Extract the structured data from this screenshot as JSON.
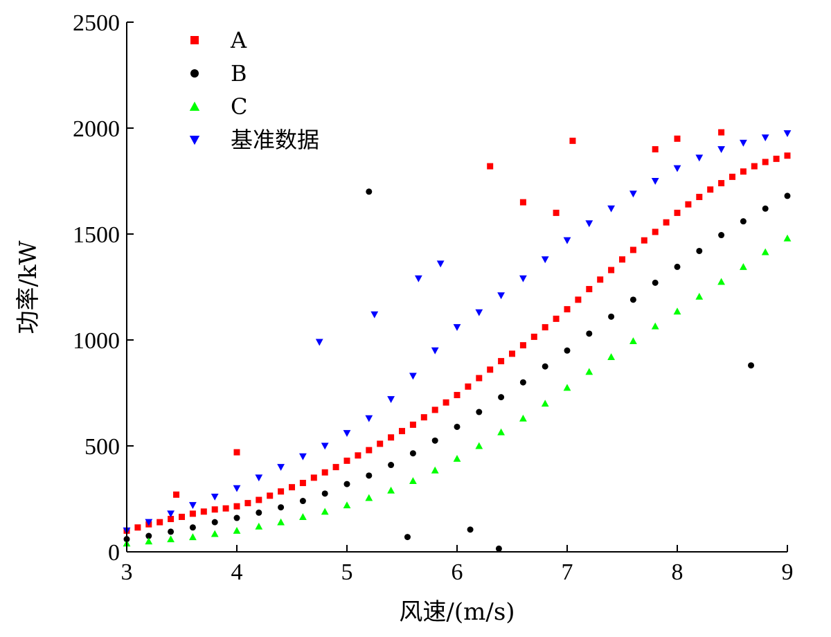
{
  "chart_data": {
    "type": "scatter",
    "xlabel": "风速/(m/s)",
    "ylabel": "功率/kW",
    "xlim": [
      3,
      9
    ],
    "ylim": [
      0,
      2500
    ],
    "xticks": [
      3,
      4,
      5,
      6,
      7,
      8,
      9
    ],
    "yticks": [
      0,
      500,
      1000,
      1500,
      2000,
      2500
    ],
    "grid": false,
    "legend_position": "top-left",
    "series": [
      {
        "name": "A",
        "marker": "square",
        "color": "#ff0000",
        "x": [
          3.0,
          3.1,
          3.2,
          3.3,
          3.4,
          3.5,
          3.6,
          3.7,
          3.8,
          3.9,
          4.0,
          4.1,
          4.2,
          4.3,
          4.4,
          4.5,
          4.6,
          4.7,
          4.8,
          4.9,
          5.0,
          5.1,
          5.2,
          5.3,
          5.4,
          5.5,
          5.6,
          5.7,
          5.8,
          5.9,
          6.0,
          6.1,
          6.2,
          6.3,
          6.4,
          6.5,
          6.6,
          6.7,
          6.8,
          6.9,
          7.0,
          7.1,
          7.2,
          7.3,
          7.4,
          7.5,
          7.6,
          7.7,
          7.8,
          7.9,
          8.0,
          8.1,
          8.2,
          8.3,
          8.4,
          8.5,
          8.6,
          8.7,
          8.8,
          8.9,
          9.0,
          6.3,
          6.6,
          7.05,
          6.9,
          8.0,
          8.4,
          7.8,
          4.0,
          3.45
        ],
        "y": [
          100,
          115,
          130,
          140,
          155,
          165,
          180,
          190,
          200,
          205,
          215,
          230,
          245,
          265,
          285,
          305,
          325,
          350,
          375,
          400,
          430,
          455,
          480,
          510,
          540,
          570,
          600,
          635,
          670,
          705,
          740,
          780,
          820,
          860,
          900,
          935,
          975,
          1015,
          1060,
          1100,
          1145,
          1190,
          1240,
          1285,
          1330,
          1380,
          1425,
          1470,
          1510,
          1555,
          1600,
          1640,
          1675,
          1710,
          1740,
          1770,
          1795,
          1820,
          1840,
          1855,
          1870,
          1820,
          1650,
          1940,
          1600,
          1950,
          1980,
          1900,
          470,
          270
        ]
      },
      {
        "name": "B",
        "marker": "circle",
        "color": "#000000",
        "x": [
          3.0,
          3.2,
          3.4,
          3.6,
          3.8,
          4.0,
          4.2,
          4.4,
          4.6,
          4.8,
          5.0,
          5.2,
          5.4,
          5.6,
          5.8,
          6.0,
          6.2,
          6.4,
          6.6,
          6.8,
          7.0,
          7.2,
          7.4,
          7.6,
          7.8,
          8.0,
          8.2,
          8.4,
          8.6,
          8.8,
          9.0,
          5.2,
          8.67,
          6.12,
          5.55,
          6.38
        ],
        "y": [
          60,
          75,
          95,
          115,
          140,
          160,
          185,
          210,
          240,
          275,
          320,
          360,
          410,
          465,
          525,
          590,
          660,
          730,
          800,
          875,
          950,
          1030,
          1110,
          1190,
          1270,
          1345,
          1420,
          1495,
          1560,
          1620,
          1680,
          1700,
          880,
          105,
          70,
          15
        ]
      },
      {
        "name": "C",
        "marker": "triangle-up",
        "color": "#00ff00",
        "x": [
          3.0,
          3.2,
          3.4,
          3.6,
          3.8,
          4.0,
          4.2,
          4.4,
          4.6,
          4.8,
          5.0,
          5.2,
          5.4,
          5.6,
          5.8,
          6.0,
          6.2,
          6.4,
          6.6,
          6.8,
          7.0,
          7.2,
          7.4,
          7.6,
          7.8,
          8.0,
          8.2,
          8.4,
          8.6,
          8.8,
          9.0
        ],
        "y": [
          40,
          50,
          60,
          70,
          85,
          100,
          120,
          140,
          165,
          190,
          220,
          255,
          290,
          335,
          385,
          440,
          500,
          565,
          630,
          700,
          775,
          850,
          920,
          995,
          1065,
          1135,
          1205,
          1275,
          1345,
          1415,
          1480
        ]
      },
      {
        "name": "基准数据",
        "marker": "triangle-down",
        "color": "#0000ff",
        "x": [
          3.0,
          3.2,
          3.4,
          3.6,
          3.8,
          4.0,
          4.2,
          4.4,
          4.6,
          4.8,
          5.0,
          5.2,
          5.4,
          5.6,
          5.8,
          6.0,
          6.2,
          6.4,
          6.6,
          6.8,
          7.0,
          7.2,
          7.4,
          7.6,
          7.8,
          8.0,
          8.2,
          8.4,
          8.6,
          8.8,
          9.0,
          5.85,
          5.65,
          5.25,
          4.75
        ],
        "y": [
          100,
          140,
          180,
          220,
          260,
          300,
          350,
          400,
          450,
          500,
          560,
          630,
          720,
          830,
          950,
          1060,
          1130,
          1210,
          1290,
          1380,
          1470,
          1550,
          1620,
          1690,
          1750,
          1810,
          1860,
          1900,
          1930,
          1955,
          1975,
          1360,
          1290,
          1120,
          990
        ]
      }
    ]
  }
}
